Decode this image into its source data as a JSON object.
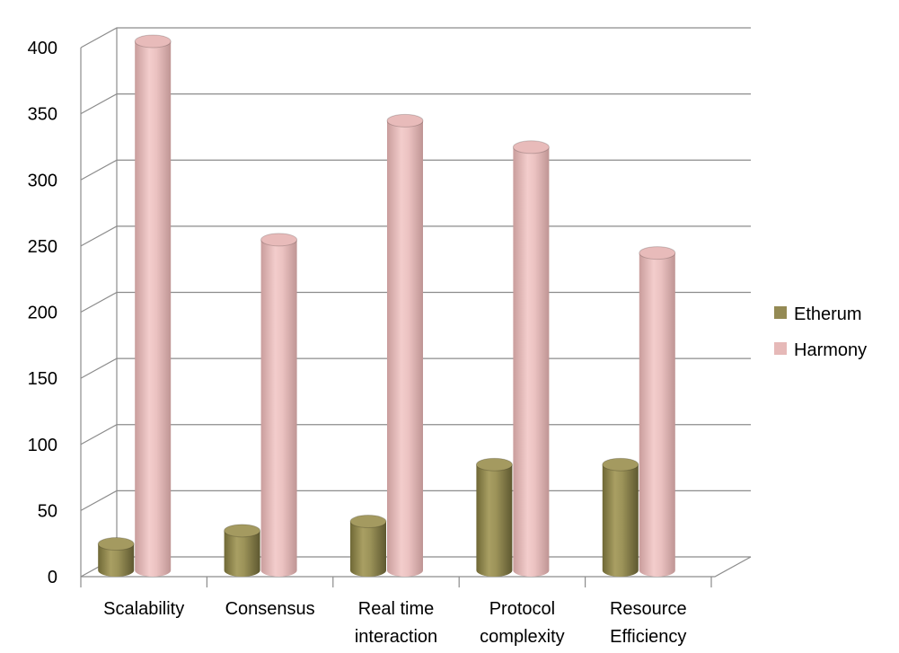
{
  "chart_data": {
    "type": "bar",
    "style": "3d-cylinder",
    "title": "",
    "xlabel": "",
    "ylabel": "",
    "ylim": [
      0,
      400
    ],
    "ytick_step": 50,
    "grid": true,
    "legend_position": "right",
    "categories": [
      [
        "Scalability"
      ],
      [
        "Consensus"
      ],
      [
        "Real time",
        "interaction"
      ],
      [
        "Protocol",
        "complexity"
      ],
      [
        "Resource",
        "Efficiency"
      ]
    ],
    "series": [
      {
        "name": "Etherum",
        "color": "#948A54",
        "values": [
          20,
          30,
          37,
          80,
          80
        ]
      },
      {
        "name": "Harmony",
        "color": "#E6B9B8",
        "values": [
          400,
          250,
          340,
          320,
          240
        ]
      }
    ]
  }
}
